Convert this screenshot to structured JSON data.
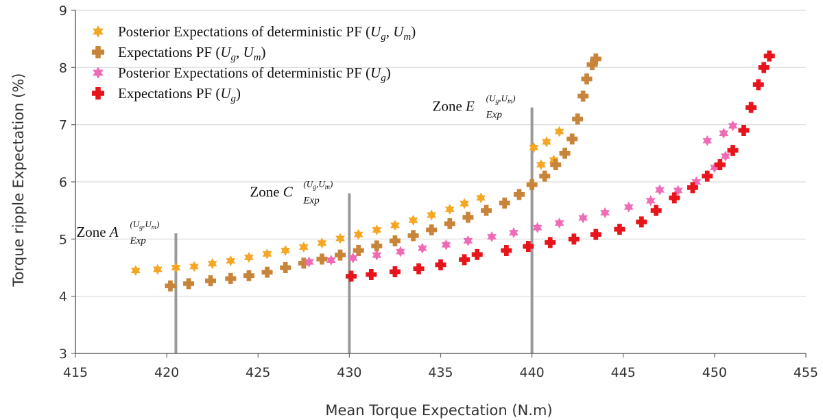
{
  "chart_data": {
    "type": "scatter",
    "xlabel": "Mean Torque Expectation (N.m)",
    "ylabel": "Torque ripple Expectation (%)",
    "xlim": [
      415,
      455
    ],
    "ylim": [
      3,
      9
    ],
    "xticks": [
      "415",
      "420",
      "425",
      "430",
      "435",
      "440",
      "445",
      "450",
      "455"
    ],
    "yticks": [
      "3",
      "4",
      "5",
      "6",
      "7",
      "8",
      "9"
    ],
    "grid": "horizontal",
    "legend_position": "top-left",
    "series": [
      {
        "name": "Posterior Expectations of deterministic PF (U_g, U_m)",
        "legend_main": "Posterior Expectations of deterministic PF (",
        "legend_vars": [
          "U",
          "g",
          ", ",
          "U",
          "m",
          ")"
        ],
        "color": "#F5A623",
        "marker": "star",
        "points": [
          [
            418.3,
            4.45
          ],
          [
            419.5,
            4.47
          ],
          [
            420.5,
            4.5
          ],
          [
            421.5,
            4.52
          ],
          [
            422.5,
            4.57
          ],
          [
            423.5,
            4.62
          ],
          [
            424.5,
            4.68
          ],
          [
            425.5,
            4.74
          ],
          [
            426.5,
            4.8
          ],
          [
            427.5,
            4.86
          ],
          [
            428.5,
            4.93
          ],
          [
            429.5,
            5.01
          ],
          [
            430.5,
            5.08
          ],
          [
            431.5,
            5.16
          ],
          [
            432.5,
            5.24
          ],
          [
            433.5,
            5.33
          ],
          [
            434.5,
            5.42
          ],
          [
            435.5,
            5.52
          ],
          [
            436.3,
            5.62
          ],
          [
            437.2,
            5.72
          ],
          [
            440.1,
            6.6
          ],
          [
            440.8,
            6.7
          ],
          [
            441.5,
            6.88
          ],
          [
            440.5,
            6.3
          ],
          [
            441.2,
            6.38
          ]
        ]
      },
      {
        "name": "Expectations PF (U_g, U_m)",
        "legend_main": "Expectations PF (",
        "legend_vars": [
          "U",
          "g",
          ", ",
          "U",
          "m",
          ")"
        ],
        "color": "#C8853A",
        "marker": "plus",
        "points": [
          [
            420.2,
            4.18
          ],
          [
            421.2,
            4.22
          ],
          [
            422.4,
            4.27
          ],
          [
            423.5,
            4.31
          ],
          [
            424.5,
            4.36
          ],
          [
            425.5,
            4.42
          ],
          [
            426.5,
            4.5
          ],
          [
            427.5,
            4.58
          ],
          [
            428.5,
            4.65
          ],
          [
            429.5,
            4.72
          ],
          [
            430.5,
            4.8
          ],
          [
            431.5,
            4.88
          ],
          [
            432.5,
            4.97
          ],
          [
            433.5,
            5.06
          ],
          [
            434.5,
            5.16
          ],
          [
            435.5,
            5.27
          ],
          [
            436.5,
            5.38
          ],
          [
            437.5,
            5.5
          ],
          [
            438.5,
            5.63
          ],
          [
            439.3,
            5.78
          ],
          [
            440.0,
            5.95
          ],
          [
            440.7,
            6.1
          ],
          [
            441.3,
            6.3
          ],
          [
            441.8,
            6.5
          ],
          [
            442.2,
            6.75
          ],
          [
            442.5,
            7.1
          ],
          [
            442.8,
            7.5
          ],
          [
            443.0,
            7.8
          ],
          [
            443.3,
            8.05
          ],
          [
            443.5,
            8.15
          ]
        ]
      },
      {
        "name": "Posterior Expectations of deterministic PF (U_g)",
        "legend_main": "Posterior Expectations of deterministic PF (",
        "legend_vars": [
          "U",
          "g",
          "",
          "",
          "",
          ")"
        ],
        "color": "#F06BB5",
        "marker": "star",
        "points": [
          [
            427.8,
            4.6
          ],
          [
            429.0,
            4.63
          ],
          [
            430.2,
            4.67
          ],
          [
            431.5,
            4.72
          ],
          [
            432.8,
            4.78
          ],
          [
            434.0,
            4.84
          ],
          [
            435.3,
            4.9
          ],
          [
            436.5,
            4.97
          ],
          [
            437.8,
            5.04
          ],
          [
            439.0,
            5.11
          ],
          [
            440.3,
            5.2
          ],
          [
            441.5,
            5.28
          ],
          [
            442.8,
            5.37
          ],
          [
            444.0,
            5.46
          ],
          [
            445.3,
            5.56
          ],
          [
            446.5,
            5.67
          ],
          [
            447.0,
            5.86
          ],
          [
            448.0,
            5.85
          ],
          [
            449.0,
            6.0
          ],
          [
            450.0,
            6.25
          ],
          [
            450.6,
            6.45
          ],
          [
            449.6,
            6.72
          ],
          [
            450.5,
            6.85
          ],
          [
            451.0,
            6.98
          ]
        ]
      },
      {
        "name": "Expectations PF (U_g)",
        "legend_main": "Expectations PF (",
        "legend_vars": [
          "U",
          "g",
          "",
          "",
          "",
          ")"
        ],
        "color": "#E8141B",
        "marker": "plus",
        "points": [
          [
            430.1,
            4.35
          ],
          [
            431.2,
            4.38
          ],
          [
            432.5,
            4.43
          ],
          [
            433.8,
            4.48
          ],
          [
            435.0,
            4.55
          ],
          [
            436.3,
            4.64
          ],
          [
            437.0,
            4.73
          ],
          [
            438.6,
            4.8
          ],
          [
            439.8,
            4.87
          ],
          [
            441.0,
            4.94
          ],
          [
            442.3,
            5.0
          ],
          [
            443.5,
            5.08
          ],
          [
            444.8,
            5.17
          ],
          [
            446.0,
            5.3
          ],
          [
            446.8,
            5.5
          ],
          [
            447.8,
            5.72
          ],
          [
            448.8,
            5.9
          ],
          [
            449.6,
            6.1
          ],
          [
            450.3,
            6.3
          ],
          [
            451.0,
            6.55
          ],
          [
            451.6,
            6.9
          ],
          [
            452.0,
            7.3
          ],
          [
            452.4,
            7.7
          ],
          [
            452.7,
            8.0
          ],
          [
            453.0,
            8.2
          ]
        ]
      }
    ],
    "zones": [
      {
        "prefix": "Zone ",
        "letter": "A",
        "sup": "(U",
        "supsub": "g",
        "sup2": ",U",
        "supsub2": "m",
        "sup3": ")",
        "sub": "Exp",
        "x": 420.5,
        "y_top": 5.1
      },
      {
        "prefix": "Zone ",
        "letter": "C",
        "sup": "(U",
        "supsub": "g",
        "sup2": ",U",
        "supsub2": "m",
        "sup3": ")",
        "sub": "Exp",
        "x": 430.0,
        "y_top": 5.8
      },
      {
        "prefix": "Zone ",
        "letter": "E",
        "sup": "(U",
        "supsub": "g",
        "sup2": ",U",
        "supsub2": "m",
        "sup3": ")",
        "sub": "Exp",
        "x": 440.0,
        "y_top": 7.3
      }
    ]
  }
}
